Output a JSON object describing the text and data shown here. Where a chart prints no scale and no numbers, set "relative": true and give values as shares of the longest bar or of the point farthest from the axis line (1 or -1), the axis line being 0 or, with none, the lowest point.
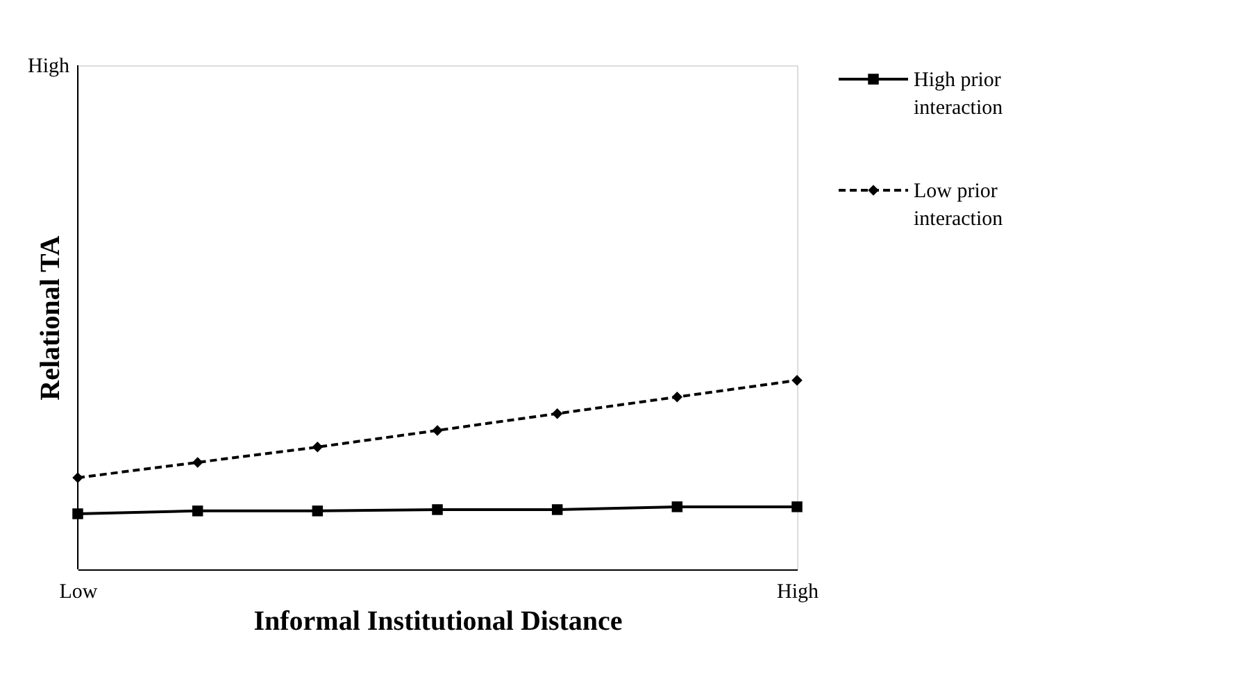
{
  "chart_data": {
    "type": "line",
    "relative": true,
    "xlabel": "Informal Institutional Distance",
    "ylabel": "Relational TA",
    "categories": [
      "Low",
      null,
      null,
      null,
      null,
      null,
      "High"
    ],
    "series": [
      {
        "name": "High prior interaction",
        "color": "#000000",
        "line_style": "solid",
        "marker": "square",
        "values": [
          0.294,
          0.309,
          0.309,
          0.316,
          0.316,
          0.331,
          0.331
        ]
      },
      {
        "name": "Low prior interaction",
        "color": "#000000",
        "line_style": "dashed",
        "marker": "diamond",
        "values": [
          0.485,
          0.566,
          0.647,
          0.735,
          0.824,
          0.912,
          1
        ]
      }
    ],
    "annotations": [
      "High"
    ],
    "grid": false,
    "legend": "top right"
  }
}
